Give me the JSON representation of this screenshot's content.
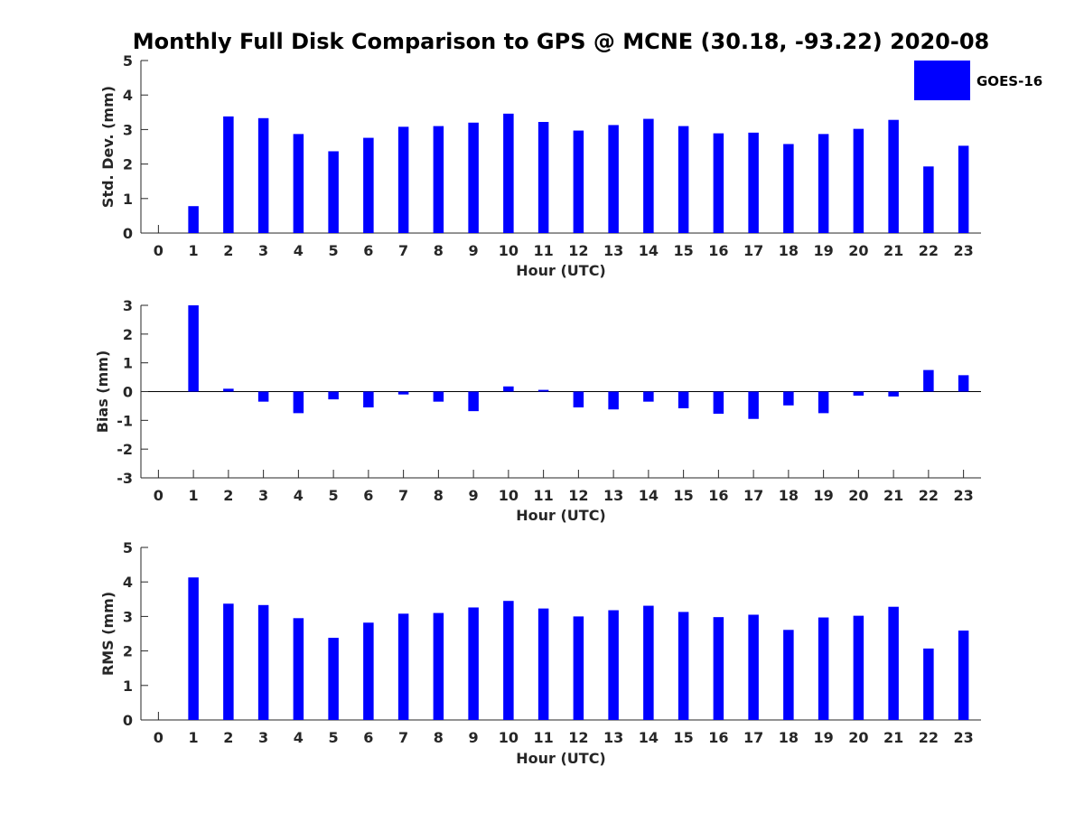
{
  "title": "Monthly Full Disk Comparison to GPS @ MCNE (30.18, -93.22) 2020-08",
  "legend": {
    "label": "GOES-16",
    "placement": "top-right"
  },
  "colors": {
    "bar": "#0000ff",
    "axis": "#262626",
    "zero_line": "#000000"
  },
  "chart_data": [
    {
      "type": "bar",
      "title": "",
      "xlabel": "Hour (UTC)",
      "ylabel": "Std. Dev. (mm)",
      "categories": [
        "0",
        "1",
        "2",
        "3",
        "4",
        "5",
        "6",
        "7",
        "8",
        "9",
        "10",
        "11",
        "12",
        "13",
        "14",
        "15",
        "16",
        "17",
        "18",
        "19",
        "20",
        "21",
        "22",
        "23"
      ],
      "series": [
        {
          "name": "GOES-16",
          "values": [
            0,
            0.78,
            3.38,
            3.33,
            2.87,
            2.37,
            2.76,
            3.08,
            3.1,
            3.2,
            3.46,
            3.22,
            2.97,
            3.13,
            3.31,
            3.1,
            2.89,
            2.91,
            2.58,
            2.87,
            3.02,
            3.28,
            1.93,
            2.53
          ]
        }
      ],
      "ylim": [
        0,
        5
      ],
      "yticks": [
        0,
        1,
        2,
        3,
        4,
        5
      ],
      "grid": false
    },
    {
      "type": "bar",
      "title": "",
      "xlabel": "Hour (UTC)",
      "ylabel": "Bias (mm)",
      "categories": [
        "0",
        "1",
        "2",
        "3",
        "4",
        "5",
        "6",
        "7",
        "8",
        "9",
        "10",
        "11",
        "12",
        "13",
        "14",
        "15",
        "16",
        "17",
        "18",
        "19",
        "20",
        "21",
        "22",
        "23"
      ],
      "series": [
        {
          "name": "GOES-16",
          "values": [
            0,
            3.0,
            0.1,
            -0.35,
            -0.75,
            -0.27,
            -0.55,
            -0.1,
            -0.35,
            -0.68,
            0.18,
            0.06,
            -0.55,
            -0.62,
            -0.35,
            -0.58,
            -0.77,
            -0.95,
            -0.48,
            -0.75,
            -0.14,
            -0.17,
            0.75,
            0.57
          ]
        }
      ],
      "ylim": [
        -3,
        3
      ],
      "yticks": [
        -3,
        -2,
        -1,
        0,
        1,
        2,
        3
      ],
      "grid": false
    },
    {
      "type": "bar",
      "title": "",
      "xlabel": "Hour (UTC)",
      "ylabel": "RMS (mm)",
      "categories": [
        "0",
        "1",
        "2",
        "3",
        "4",
        "5",
        "6",
        "7",
        "8",
        "9",
        "10",
        "11",
        "12",
        "13",
        "14",
        "15",
        "16",
        "17",
        "18",
        "19",
        "20",
        "21",
        "22",
        "23"
      ],
      "series": [
        {
          "name": "GOES-16",
          "values": [
            0,
            4.13,
            3.37,
            3.33,
            2.95,
            2.38,
            2.82,
            3.08,
            3.1,
            3.26,
            3.45,
            3.23,
            3.0,
            3.18,
            3.31,
            3.13,
            2.98,
            3.05,
            2.61,
            2.97,
            3.02,
            3.28,
            2.07,
            2.59
          ]
        }
      ],
      "ylim": [
        0,
        5
      ],
      "yticks": [
        0,
        1,
        2,
        3,
        4,
        5
      ],
      "grid": false
    }
  ]
}
